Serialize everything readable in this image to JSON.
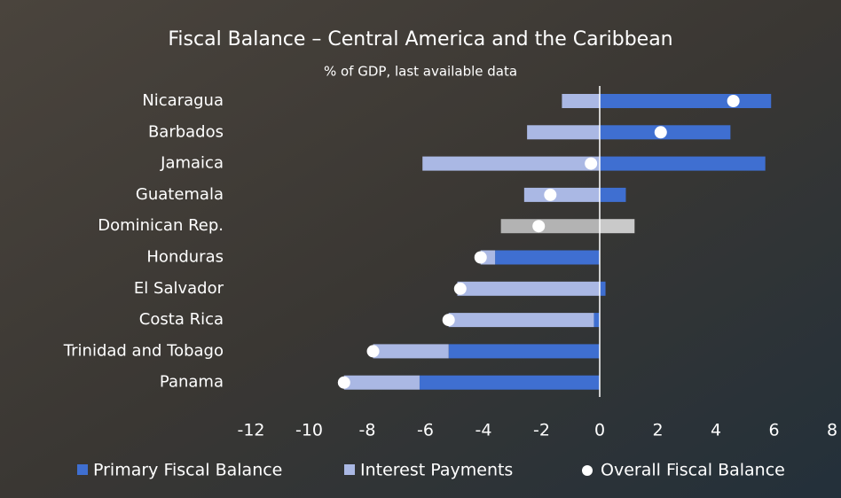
{
  "chart_data": {
    "type": "diverging_bar",
    "title": "Fiscal Balance – Central America and the Caribbean",
    "subtitle": "% of GDP, last available data",
    "categories": [
      "Nicaragua",
      "Barbados",
      "Jamaica",
      "Guatemala",
      "Dominican Rep.",
      "Honduras",
      "El Salvador",
      "Costa Rica",
      "Trinidad and Tobago",
      "Panama"
    ],
    "series": [
      {
        "name": "Primary Fiscal Balance",
        "color": "#3f6fd1",
        "values": [
          5.9,
          4.5,
          5.7,
          0.9,
          1.2,
          -3.6,
          0.2,
          -0.2,
          -5.2,
          -6.2
        ],
        "colors": [
          "#3f6fd1",
          "#3f6fd1",
          "#3f6fd1",
          "#3f6fd1",
          "#c9c9c9",
          "#3f6fd1",
          "#3f6fd1",
          "#3f6fd1",
          "#3f6fd1",
          "#3f6fd1"
        ]
      },
      {
        "name": "Interest Payments",
        "color": "#aab8e4",
        "values": [
          -1.3,
          -2.5,
          -6.1,
          -2.6,
          -3.4,
          -0.5,
          -4.9,
          -5.0,
          -2.6,
          -2.6
        ],
        "colors": [
          "#aab8e4",
          "#aab8e4",
          "#aab8e4",
          "#aab8e4",
          "#b3b3b3",
          "#aab8e4",
          "#aab8e4",
          "#aab8e4",
          "#aab8e4",
          "#aab8e4"
        ]
      },
      {
        "name": "Overall Fiscal Balance",
        "color": "#ffffff",
        "values": [
          4.6,
          2.1,
          -0.3,
          -1.7,
          -2.1,
          -4.1,
          -4.8,
          -5.2,
          -7.8,
          -8.8
        ]
      }
    ],
    "xlim": [
      -12,
      8
    ],
    "xticks": [
      -12,
      -10,
      -8,
      -6,
      -4,
      -2,
      0,
      2,
      4,
      6,
      8
    ]
  }
}
